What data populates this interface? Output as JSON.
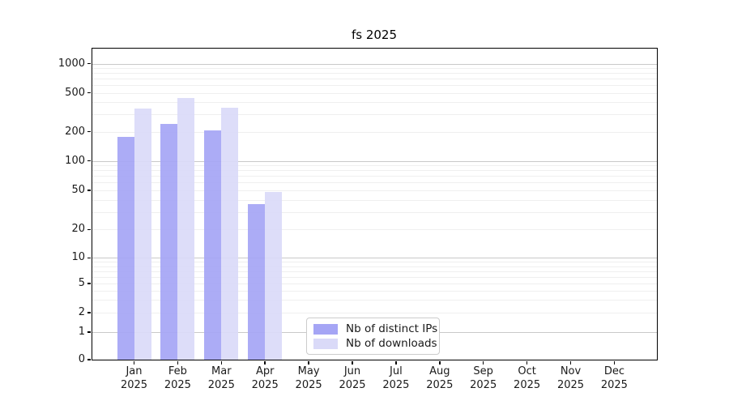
{
  "title": "fs 2025",
  "chart_data": {
    "type": "bar",
    "title": "fs 2025",
    "categories": [
      "Jan 2025",
      "Feb 2025",
      "Mar 2025",
      "Apr 2025",
      "May 2025",
      "Jun 2025",
      "Jul 2025",
      "Aug 2025",
      "Sep 2025",
      "Oct 2025",
      "Nov 2025",
      "Dec 2025"
    ],
    "series": [
      {
        "name": "Nb of distinct IPs",
        "color": "#a5a5f5",
        "values": [
          177,
          240,
          207,
          36,
          0,
          0,
          0,
          0,
          0,
          0,
          0,
          0
        ]
      },
      {
        "name": "Nb of downloads",
        "color": "#dadaf8",
        "values": [
          345,
          443,
          350,
          48,
          0,
          0,
          0,
          0,
          0,
          0,
          0,
          0
        ]
      }
    ],
    "yscale": "symlog",
    "yticks": [
      0,
      1,
      2,
      5,
      10,
      20,
      50,
      100,
      200,
      500,
      1000
    ],
    "ylim": [
      0,
      1430
    ],
    "grid": true,
    "legend_position": "lower-left-of-center"
  },
  "colors": {
    "distinct_ips_bar": "#a5a5f5",
    "downloads_bar": "#dadaf8",
    "grid_major": "#c9c9c9",
    "grid_minor": "#efefef",
    "spine": "#000000",
    "tick_text": "#1a1a1a",
    "legend_border": "#cccccc",
    "background": "#ffffff"
  }
}
